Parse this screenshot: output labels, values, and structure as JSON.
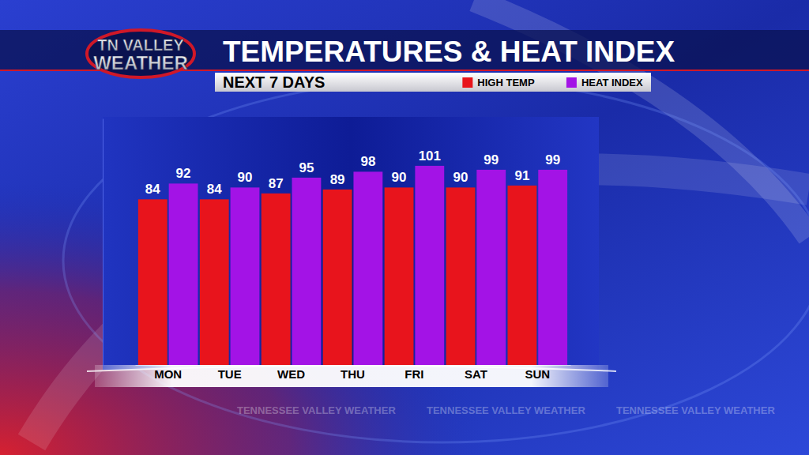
{
  "chart_data": {
    "type": "bar",
    "title": "TEMPERATURES & HEAT INDEX",
    "subtitle": "NEXT 7 DAYS",
    "annotations": [
      "TN VALLEY",
      "WEATHER",
      "TENNESSEE VALLEY WEATHER"
    ],
    "categories": [
      "MON",
      "TUE",
      "WED",
      "THU",
      "FRI",
      "SAT",
      "SUN"
    ],
    "series": [
      {
        "name": "HIGH TEMP",
        "color": "#e8141c",
        "values": [
          84,
          84,
          87,
          89,
          90,
          90,
          91
        ]
      },
      {
        "name": "HEAT INDEX",
        "color": "#a313e6",
        "values": [
          92,
          90,
          95,
          98,
          101,
          99,
          99
        ]
      }
    ],
    "ylim": [
      0,
      125
    ],
    "yticks": [],
    "tick_labels": "x",
    "legend": "top",
    "data_labels": true,
    "grid": false
  }
}
